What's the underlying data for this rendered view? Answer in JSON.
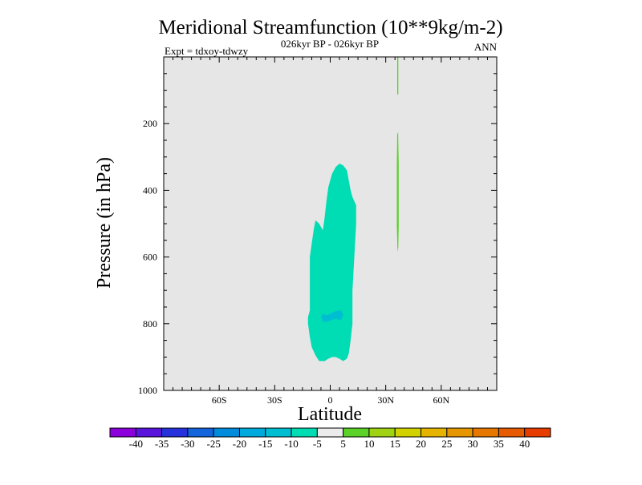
{
  "chart_data": {
    "type": "heatmap",
    "title": "Meridional Streamfunction (10**9kg/m-2)",
    "subtitle": "026kyr BP - 026kyr BP",
    "left_label": "Expt = tdxoy-tdwzy",
    "right_label": "ANN",
    "xlabel": "Latitude",
    "ylabel": "Pressure (in hPa)",
    "xlim": [
      -90,
      90
    ],
    "ylim": [
      1000,
      0
    ],
    "x_ticks": [
      {
        "value": -60,
        "label": "60S"
      },
      {
        "value": -30,
        "label": "30S"
      },
      {
        "value": 0,
        "label": "0"
      },
      {
        "value": 30,
        "label": "30N"
      },
      {
        "value": 60,
        "label": "60N"
      }
    ],
    "y_ticks": [
      {
        "value": 200,
        "label": "200"
      },
      {
        "value": 400,
        "label": "400"
      },
      {
        "value": 600,
        "label": "600"
      },
      {
        "value": 800,
        "label": "800"
      },
      {
        "value": 1000,
        "label": "1000"
      }
    ],
    "background_color": "#e6e6e6",
    "contour_regions": [
      {
        "level_range": [
          -10,
          -5
        ],
        "color": "#00dcb4",
        "points": [
          [
            -6,
            912
          ],
          [
            -8,
            895
          ],
          [
            -10,
            870
          ],
          [
            -11,
            840
          ],
          [
            -12,
            800
          ],
          [
            -12,
            780
          ],
          [
            -11,
            760
          ],
          [
            -11,
            700
          ],
          [
            -11,
            650
          ],
          [
            -11,
            600
          ],
          [
            -10,
            560
          ],
          [
            -9,
            520
          ],
          [
            -8,
            490
          ],
          [
            -6,
            500
          ],
          [
            -4,
            520
          ],
          [
            -3,
            480
          ],
          [
            -2,
            430
          ],
          [
            -1,
            390
          ],
          [
            1,
            350
          ],
          [
            3,
            330
          ],
          [
            5,
            320
          ],
          [
            7,
            325
          ],
          [
            9,
            340
          ],
          [
            10,
            370
          ],
          [
            11,
            400
          ],
          [
            12,
            420
          ],
          [
            14,
            445
          ],
          [
            14,
            500
          ],
          [
            13,
            600
          ],
          [
            12,
            700
          ],
          [
            12,
            800
          ],
          [
            11,
            850
          ],
          [
            10,
            890
          ],
          [
            9,
            905
          ],
          [
            7,
            912
          ],
          [
            5,
            905
          ],
          [
            3,
            900
          ],
          [
            1,
            900
          ],
          [
            -1,
            905
          ],
          [
            -3,
            912
          ]
        ]
      },
      {
        "level_range": [
          -15,
          -10
        ],
        "color": "#00bed2",
        "points": [
          [
            -5,
            780
          ],
          [
            -4,
            770
          ],
          [
            -2,
            775
          ],
          [
            0,
            770
          ],
          [
            3,
            762
          ],
          [
            6,
            760
          ],
          [
            7,
            772
          ],
          [
            6,
            790
          ],
          [
            3,
            785
          ],
          [
            0,
            790
          ],
          [
            -2,
            795
          ],
          [
            -4,
            793
          ]
        ]
      },
      {
        "level_range": [
          5,
          10
        ],
        "color": "#5ad228",
        "points": [
          [
            36.2,
            0
          ],
          [
            36.8,
            0
          ],
          [
            36.8,
            110
          ],
          [
            36.5,
            115
          ],
          [
            36.2,
            110
          ]
        ]
      },
      {
        "level_range": [
          5,
          10
        ],
        "color": "#5ad228",
        "points": [
          [
            36.2,
            232
          ],
          [
            36.7,
            225
          ],
          [
            37.0,
            320
          ],
          [
            37.0,
            510
          ],
          [
            36.8,
            570
          ],
          [
            36.5,
            585
          ],
          [
            36.3,
            570
          ],
          [
            36.0,
            510
          ],
          [
            36.0,
            320
          ]
        ]
      }
    ],
    "colorbar": {
      "colors": [
        "#8c00dc",
        "#5a14dc",
        "#2832dc",
        "#1464dc",
        "#008cdc",
        "#00aadc",
        "#00bed2",
        "#00dcb4",
        "#ebebeb",
        "#5ad228",
        "#a0d214",
        "#d2d200",
        "#e6b400",
        "#e69600",
        "#e67800",
        "#e65a00",
        "#e63c00"
      ],
      "labels": [
        "-40",
        "-35",
        "-30",
        "-25",
        "-20",
        "-15",
        "-10",
        "-5",
        "5",
        "10",
        "15",
        "20",
        "25",
        "30",
        "35",
        "40"
      ]
    }
  }
}
